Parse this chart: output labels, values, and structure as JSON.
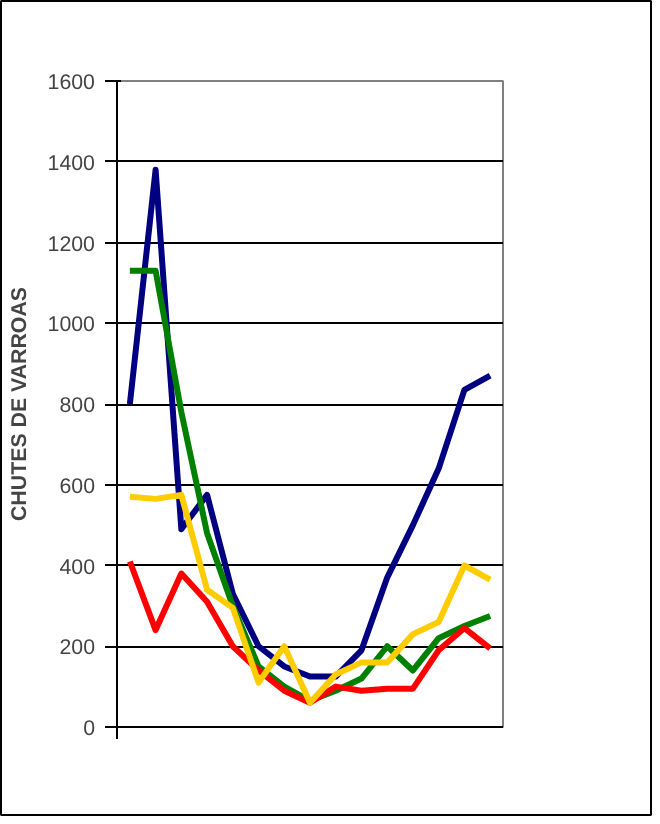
{
  "chart_data": {
    "type": "line",
    "ylabel": "CHUTES DE VARROAS",
    "categories": [
      null,
      null,
      null,
      null,
      null,
      null,
      null,
      null,
      null,
      null,
      null,
      null,
      null,
      null,
      null
    ],
    "ylim": [
      0,
      1600
    ],
    "yticks": [
      0,
      200,
      400,
      600,
      800,
      1000,
      1200,
      1400,
      1600
    ],
    "grid": "y",
    "line_style": "solid",
    "series": [
      {
        "color": "#000080",
        "values": [
          800,
          1380,
          490,
          575,
          330,
          200,
          150,
          125,
          125,
          190,
          370,
          500,
          640,
          835,
          870
        ]
      },
      {
        "color": "#008000",
        "values": [
          1130,
          1130,
          780,
          480,
          300,
          150,
          100,
          65,
          90,
          120,
          200,
          140,
          220,
          250,
          275
        ]
      },
      {
        "color": "#ff0000",
        "values": [
          410,
          240,
          380,
          310,
          200,
          140,
          90,
          60,
          100,
          90,
          95,
          95,
          190,
          245,
          195
        ]
      },
      {
        "color": "#ffcc00",
        "values": [
          570,
          565,
          575,
          340,
          295,
          110,
          200,
          60,
          130,
          160,
          160,
          230,
          260,
          400,
          365
        ]
      }
    ]
  }
}
